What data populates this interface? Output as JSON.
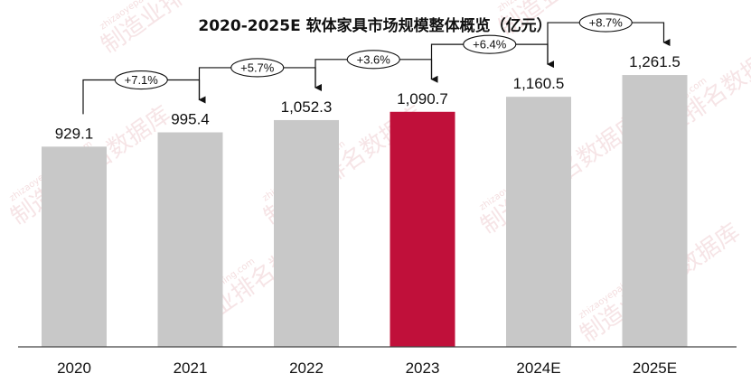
{
  "chart_data": {
    "type": "bar",
    "title": "2020-2025E 软体家具市场规模整体概览（亿元）",
    "categories": [
      "2020",
      "2021",
      "2022",
      "2023",
      "2024E",
      "2025E"
    ],
    "values": [
      929.1,
      995.4,
      1052.3,
      1090.7,
      1160.5,
      1261.5
    ],
    "value_labels": [
      "929.1",
      "995.4",
      "1,052.3",
      "1,090.7",
      "1,160.5",
      "1,261.5"
    ],
    "growth_labels": [
      "+7.1%",
      "+5.7%",
      "+3.6%",
      "+6.4%",
      "+8.7%"
    ],
    "highlight_index": 3,
    "colors": {
      "bar": "#c8c8c8",
      "highlight": "#c0103a",
      "axis": "#444444",
      "text": "#111111"
    },
    "ylim": [
      0,
      1400
    ],
    "grid": false,
    "legend": "none"
  },
  "watermark": {
    "text": "制造业排名数据库",
    "url": "zhizaoyepaiming.com"
  }
}
